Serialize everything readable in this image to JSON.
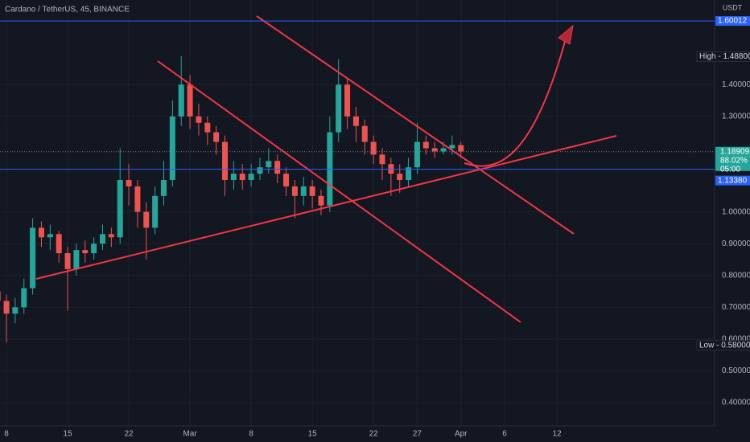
{
  "chart_data": {
    "type": "candlestick",
    "title": "Cardano / TetherUS, 45, BINANCE",
    "y_axis_label": "USDT",
    "x": [
      -1,
      0,
      1,
      2,
      3,
      4,
      5,
      6,
      7,
      8,
      9,
      10,
      11,
      12,
      13,
      14,
      15,
      16,
      17,
      18,
      19,
      20,
      21,
      22,
      23,
      24,
      25,
      26,
      27,
      28,
      29,
      30,
      31,
      32,
      33,
      34,
      35,
      36,
      37,
      38,
      39,
      40,
      41,
      42,
      43,
      44,
      45,
      46,
      47,
      48,
      49,
      50,
      51,
      52
    ],
    "open": [
      0.75,
      0.72,
      0.68,
      0.7,
      0.76,
      0.95,
      0.92,
      0.93,
      0.87,
      0.82,
      0.88,
      0.87,
      0.9,
      0.93,
      0.92,
      1.1,
      1.08,
      1.0,
      0.95,
      1.05,
      1.1,
      1.3,
      1.4,
      1.3,
      1.28,
      1.25,
      1.22,
      1.1,
      1.12,
      1.1,
      1.12,
      1.14,
      1.16,
      1.12,
      1.08,
      1.05,
      1.08,
      1.05,
      1.02,
      1.25,
      1.4,
      1.3,
      1.27,
      1.22,
      1.18,
      1.15,
      1.12,
      1.1,
      1.14,
      1.22,
      1.2,
      1.19,
      1.2,
      1.21
    ],
    "high": [
      0.78,
      0.74,
      0.73,
      0.79,
      0.98,
      0.97,
      0.96,
      0.94,
      0.89,
      0.9,
      0.91,
      0.92,
      0.96,
      0.95,
      1.2,
      1.15,
      1.1,
      1.03,
      1.08,
      1.16,
      1.35,
      1.49,
      1.43,
      1.34,
      1.3,
      1.27,
      1.24,
      1.16,
      1.15,
      1.15,
      1.17,
      1.2,
      1.18,
      1.14,
      1.1,
      1.11,
      1.1,
      1.07,
      1.3,
      1.48,
      1.42,
      1.33,
      1.29,
      1.24,
      1.2,
      1.17,
      1.15,
      1.17,
      1.28,
      1.24,
      1.22,
      1.22,
      1.24,
      1.22
    ],
    "low": [
      0.64,
      0.59,
      0.65,
      0.68,
      0.74,
      0.89,
      0.88,
      0.84,
      0.69,
      0.8,
      0.84,
      0.85,
      0.88,
      0.89,
      0.9,
      1.02,
      0.95,
      0.85,
      0.93,
      1.02,
      1.08,
      1.27,
      1.26,
      1.24,
      1.21,
      1.18,
      1.05,
      1.07,
      1.07,
      1.08,
      1.1,
      1.12,
      1.09,
      1.05,
      0.98,
      1.02,
      1.01,
      0.99,
      1.0,
      1.22,
      1.26,
      1.22,
      1.18,
      1.15,
      1.1,
      1.05,
      1.06,
      1.08,
      1.12,
      1.18,
      1.17,
      1.18,
      1.18,
      1.17
    ],
    "close": [
      0.72,
      0.68,
      0.7,
      0.76,
      0.95,
      0.92,
      0.93,
      0.87,
      0.82,
      0.88,
      0.87,
      0.9,
      0.93,
      0.92,
      1.1,
      1.08,
      1.0,
      0.95,
      1.05,
      1.1,
      1.3,
      1.4,
      1.3,
      1.28,
      1.25,
      1.22,
      1.1,
      1.12,
      1.1,
      1.12,
      1.14,
      1.16,
      1.12,
      1.08,
      1.05,
      1.08,
      1.05,
      1.02,
      1.25,
      1.4,
      1.3,
      1.27,
      1.22,
      1.18,
      1.15,
      1.12,
      1.1,
      1.14,
      1.22,
      1.2,
      1.19,
      1.2,
      1.21,
      1.19
    ],
    "up_color": "#26a69a",
    "down_color": "#ef5350",
    "xlim": [
      -0.74,
      81.03
    ],
    "xticks": [
      {
        "value": 0,
        "label": "8"
      },
      {
        "value": 7,
        "label": "15"
      },
      {
        "value": 14,
        "label": "22"
      },
      {
        "value": 21,
        "label": "Mar"
      },
      {
        "value": 28,
        "label": "8"
      },
      {
        "value": 35,
        "label": "15"
      },
      {
        "value": 42,
        "label": "22"
      },
      {
        "value": 47,
        "label": "27"
      },
      {
        "value": 52,
        "label": "Apr"
      },
      {
        "value": 57,
        "label": "6"
      },
      {
        "value": 63,
        "label": "12"
      }
    ],
    "ylim": [
      0.327,
      1.666
    ],
    "yticks": [
      {
        "value": 1.4,
        "label": "1.40000"
      },
      {
        "value": 1.3,
        "label": "1.30000"
      },
      {
        "value": 1.0,
        "label": "1.00000"
      },
      {
        "value": 0.9,
        "label": "0.90000"
      },
      {
        "value": 0.8,
        "label": "0.80000"
      },
      {
        "value": 0.7,
        "label": "0.70000"
      },
      {
        "value": 0.6,
        "label": "0.60000"
      },
      {
        "value": 0.5,
        "label": "0.50000"
      },
      {
        "value": 0.4,
        "label": "0.40000"
      }
    ],
    "grid": true,
    "price_lines": [
      {
        "value": 1.60012,
        "label": "1.60012",
        "color": "#2962ff"
      },
      {
        "value": 1.1338,
        "label": "1.13380",
        "color": "#2962ff"
      }
    ],
    "high_label": {
      "value": 1.488,
      "label": "High - 1.48800"
    },
    "low_label": {
      "value": 0.58,
      "label": "Low - 0.58000"
    },
    "last_price": {
      "value": 1.18909,
      "label": "1.18909",
      "change": "88.02%",
      "countdown": "05:00",
      "color": "#26a69a"
    }
  }
}
